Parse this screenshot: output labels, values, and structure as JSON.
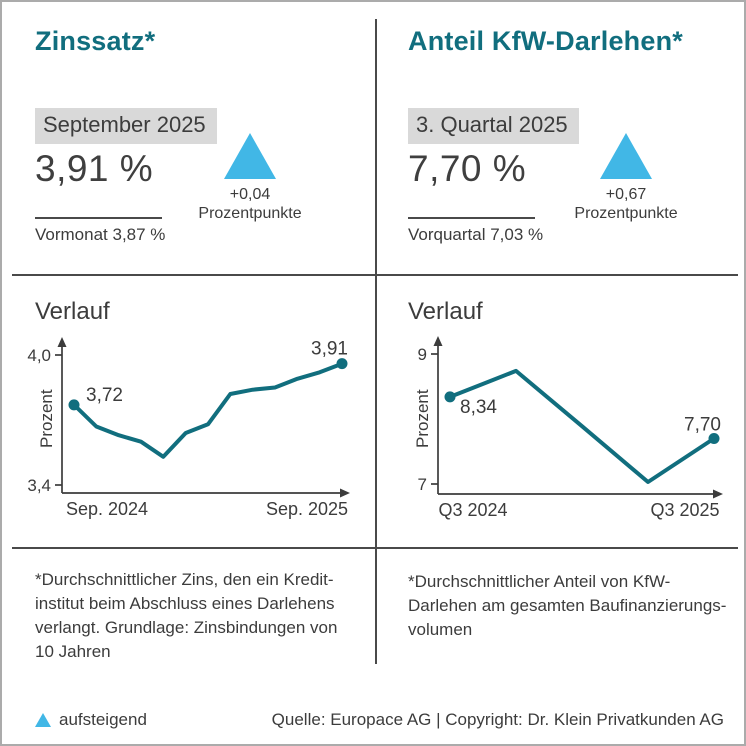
{
  "colors": {
    "teal": "#116e7e",
    "blue": "#41b7e6",
    "text_dark": "#3c3c3c",
    "badge_bg": "#d9d9d9",
    "border": "#ababab"
  },
  "left_panel": {
    "title": "Zinssatz*",
    "period": "September 2025",
    "value": "3,91 %",
    "delta": "+0,04",
    "delta_unit": "Prozentpunkte",
    "previous": "Vormonat 3,87 %",
    "chart_title": "Verlauf",
    "footnote": "*Durchschnittlicher Zins, den ein Kredit-\ninstitut beim Abschluss eines Darlehens\nverlangt. Grundlage: Zinsbindungen von\n10 Jahren"
  },
  "right_panel": {
    "title": "Anteil KfW-Darlehen*",
    "period": "3. Quartal 2025",
    "value": "7,70 %",
    "delta": "+0,67",
    "delta_unit": "Prozentpunkte",
    "previous": "Vorquartal 7,03 %",
    "chart_title": "Verlauf",
    "footnote": "*Durchschnittlicher Anteil von KfW-\nDarlehen am gesamten Baufinanzierungs-\nvolumen"
  },
  "footer": {
    "legend_label": "aufsteigend",
    "source": "Quelle: Europace AG | Copyright: Dr. Klein Privatkunden AG"
  },
  "chart_data": [
    {
      "type": "line",
      "title": "Verlauf",
      "ylabel": "Prozent",
      "x_axis_ticks": [
        "Sep. 2024",
        "Sep. 2025"
      ],
      "y_axis_ticks": [
        "4,0",
        "3,4"
      ],
      "ylim": [
        3.4,
        4.0
      ],
      "grid": false,
      "legend_position": "none",
      "series_name": "Zinssatz (Prozent), monatlich Sep. 2024 bis Sep. 2025",
      "labeled_points": {
        "start": "3,72",
        "end": "3,91"
      },
      "values": [
        3.72,
        3.62,
        3.58,
        3.55,
        3.48,
        3.59,
        3.63,
        3.77,
        3.79,
        3.8,
        3.84,
        3.87,
        3.91
      ]
    },
    {
      "type": "line",
      "title": "Verlauf",
      "ylabel": "Prozent",
      "x_axis_ticks": [
        "Q3 2024",
        "Q3 2025"
      ],
      "y_axis_ticks": [
        "9",
        "7"
      ],
      "ylim": [
        7,
        9
      ],
      "grid": false,
      "legend_position": "none",
      "series_name": "Anteil KfW-Darlehen (Prozent), Quartale Q3 2024 bis Q3 2025",
      "labeled_points": {
        "start": "8,34",
        "end": "7,70"
      },
      "values": [
        8.34,
        8.74,
        7.89,
        7.03,
        7.7
      ]
    }
  ]
}
